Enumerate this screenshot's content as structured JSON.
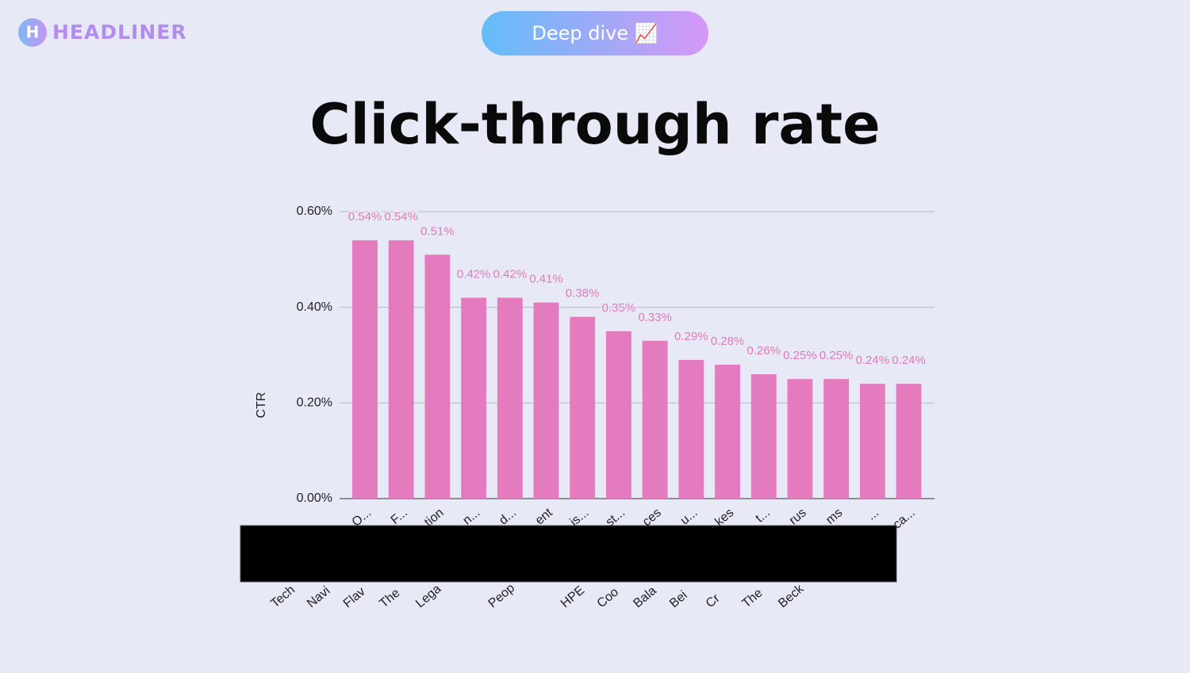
{
  "header": {
    "logo": "HEADLINER",
    "badge": "Deep dive 📈"
  },
  "chart_data": {
    "type": "bar",
    "title": "Click-through rate",
    "y_label": "CTR",
    "categories": [
      {
        "start": "Tech",
        "end": "O..."
      },
      {
        "start": "Navi",
        "end": "F..."
      },
      {
        "start": "Flav",
        "end": "tion"
      },
      {
        "start": "The",
        "end": "n..."
      },
      {
        "start": "Lega",
        "end": "d..."
      },
      {
        "start": null,
        "end": "ent"
      },
      {
        "start": "Peop",
        "end": "is..."
      },
      {
        "start": null,
        "end": "st..."
      },
      {
        "start": "HPE",
        "end": "ces"
      },
      {
        "start": "Coo",
        "end": "u..."
      },
      {
        "start": "Bala",
        "end": "kes"
      },
      {
        "start": "Bei",
        "end": "t..."
      },
      {
        "start": "Cr",
        "end": "rus"
      },
      {
        "start": "The",
        "end": "ms"
      },
      {
        "start": "Beck",
        "end": "..."
      },
      {
        "start": null,
        "end": "ca..."
      }
    ],
    "values": [
      0.54,
      0.54,
      0.51,
      0.42,
      0.42,
      0.41,
      0.38,
      0.35,
      0.33,
      0.29,
      0.28,
      0.26,
      0.25,
      0.25,
      0.24,
      0.24
    ],
    "value_labels": [
      "0.54%",
      "0.54%",
      "0.51%",
      "0.42%",
      "0.42%",
      "0.41%",
      "0.38%",
      "0.35%",
      "0.33%",
      "0.29%",
      "0.28%",
      "0.26%",
      "0.25%",
      "0.25%",
      "0.24%",
      "0.24%"
    ],
    "color": "#e57bbf",
    "ylim": [
      0,
      0.6
    ],
    "yticks": [
      {
        "value": 0,
        "label": "0.00%"
      },
      {
        "value": 0.2,
        "label": "0.20%"
      },
      {
        "value": 0.4,
        "label": "0.40%"
      },
      {
        "value": 0.6,
        "label": "0.60%"
      }
    ],
    "grid": true
  }
}
